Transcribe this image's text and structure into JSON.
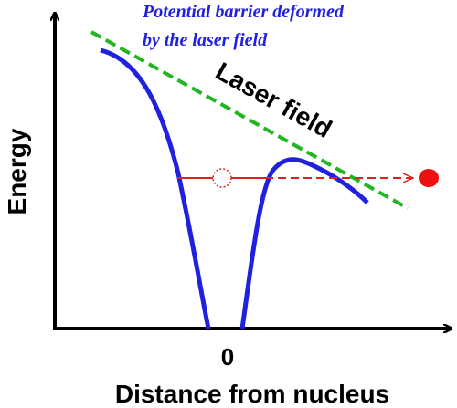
{
  "annotation": {
    "lines": [
      "Potential barrier deformed",
      "by the laser field"
    ]
  },
  "field_label": "Laser field",
  "y_axis": {
    "label": "Energy"
  },
  "x_axis": {
    "label": "Distance from nucleus",
    "origin_label": "0"
  }
}
